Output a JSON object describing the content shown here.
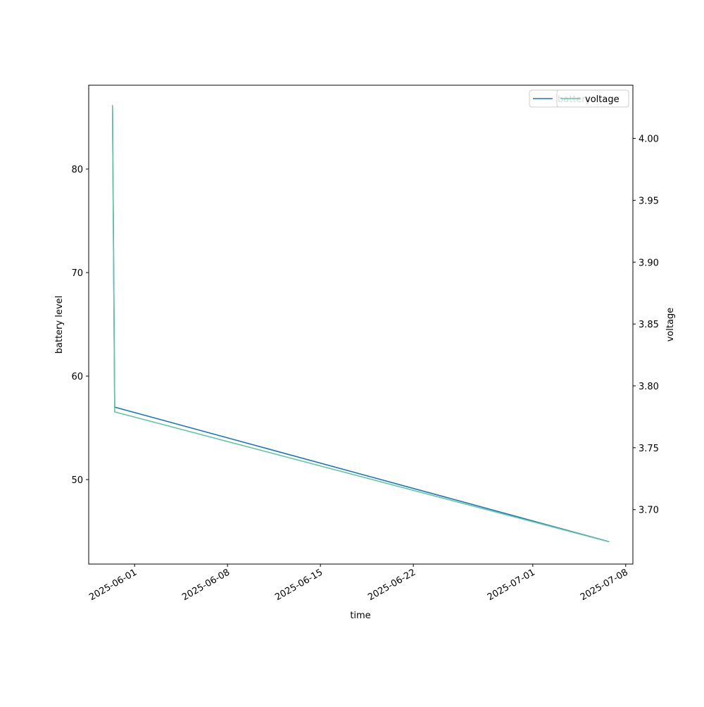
{
  "chart_data": {
    "type": "line",
    "x_label": "time",
    "y_label": "battery level",
    "y2_label": "voltage",
    "x": [
      "2025-05-30T08:00",
      "2025-05-30T12:00",
      "2025-07-06T18:00"
    ],
    "series": [
      {
        "name": "battery",
        "color": "#1f77b4",
        "values": [
          86,
          57,
          44
        ]
      },
      {
        "name": "voltage",
        "color": "#66c2a5",
        "axis": "y2",
        "values": [
          4.027,
          3.779,
          3.674
        ]
      }
    ],
    "xlim": [
      "2025-05-28T13:00",
      "2025-07-08T13:00"
    ],
    "xticks": [
      "2025-06-01",
      "2025-06-08",
      "2025-06-15",
      "2025-06-22",
      "2025-07-01",
      "2025-07-08"
    ],
    "ylim": [
      41.84,
      88.1
    ],
    "yticks": [
      50,
      60,
      70,
      80
    ],
    "y2lim": [
      3.656,
      4.043
    ],
    "y2ticks": [
      {
        "value": 3.7,
        "label": "3.70"
      },
      {
        "value": 3.75,
        "label": "3.75"
      },
      {
        "value": 3.8,
        "label": "3.80"
      },
      {
        "value": 3.85,
        "label": "3.85"
      },
      {
        "value": 3.9,
        "label": "3.90"
      },
      {
        "value": 3.95,
        "label": "3.95"
      },
      {
        "value": 4.0,
        "label": "4.00"
      }
    ],
    "legend": "upper right"
  }
}
